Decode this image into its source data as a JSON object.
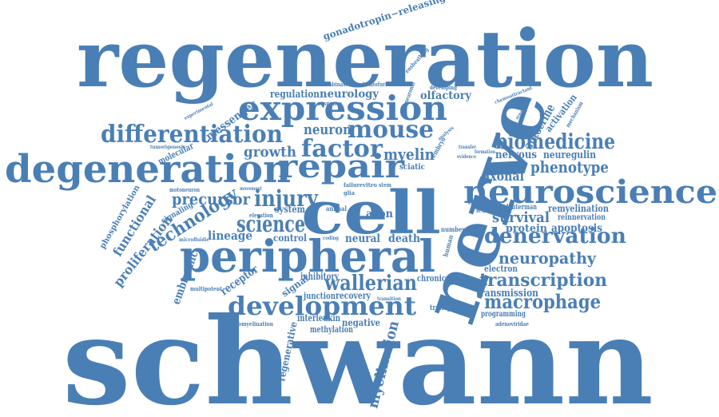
{
  "colors": {
    "word": "#4a7fb5",
    "background": "#ffffff"
  },
  "words": [
    {
      "id": "schwann",
      "text": "schwann"
    },
    {
      "id": "regeneration",
      "text": "regeneration"
    },
    {
      "id": "nerve",
      "text": "nerve"
    },
    {
      "id": "cell",
      "text": "cell"
    },
    {
      "id": "peripheral",
      "text": "peripheral"
    },
    {
      "id": "expression",
      "text": "expression"
    },
    {
      "id": "degeneration",
      "text": "degeneration"
    },
    {
      "id": "neuroscience",
      "text": "neuroscience"
    },
    {
      "id": "repair",
      "text": "repair"
    },
    {
      "id": "differentiation",
      "text": "differentiation"
    },
    {
      "id": "development",
      "text": "development"
    },
    {
      "id": "mouse",
      "text": "mouse"
    },
    {
      "id": "factor",
      "text": "factor"
    },
    {
      "id": "biomedicine",
      "text": "biomedicine"
    },
    {
      "id": "denervation",
      "text": "denervation"
    },
    {
      "id": "science",
      "text": "science"
    },
    {
      "id": "technology",
      "text": "technology"
    },
    {
      "id": "injury",
      "text": "injury"
    },
    {
      "id": "wallerian",
      "text": "wallerian"
    },
    {
      "id": "transcription",
      "text": "transcription"
    },
    {
      "id": "macrophage",
      "text": "macrophage"
    },
    {
      "id": "neuropathy",
      "text": "neuropathy"
    },
    {
      "id": "phenotype",
      "text": "phenotype"
    },
    {
      "id": "myelin",
      "text": "myelin"
    },
    {
      "id": "growth",
      "text": "growth"
    },
    {
      "id": "neuron",
      "text": "neuron"
    },
    {
      "id": "precursor",
      "text": "precursor"
    },
    {
      "id": "survival",
      "text": "survival"
    },
    {
      "id": "neurology",
      "text": "neurology"
    },
    {
      "id": "regulation",
      "text": "regulation"
    },
    {
      "id": "olfactory",
      "text": "olfactory"
    },
    {
      "id": "messenger",
      "text": "messenger"
    },
    {
      "id": "functional",
      "text": "functional"
    },
    {
      "id": "proliferation",
      "text": "proliferation"
    },
    {
      "id": "myelination",
      "text": "myelination"
    },
    {
      "id": "embryonic",
      "text": "embryonic"
    },
    {
      "id": "lineage",
      "text": "lineage"
    },
    {
      "id": "protein",
      "text": "protein"
    },
    {
      "id": "apoptosis",
      "text": "apoptosis"
    },
    {
      "id": "axonal",
      "text": "axonal"
    },
    {
      "id": "nervous",
      "text": "nervous"
    },
    {
      "id": "neuregulin",
      "text": "neuregulin"
    },
    {
      "id": "remyelination",
      "text": "remyelination"
    },
    {
      "id": "reinnervation",
      "text": "reinnervation"
    },
    {
      "id": "autocrine",
      "text": "autocrine"
    },
    {
      "id": "activation",
      "text": "activation"
    },
    {
      "id": "gonadotropin-releasing",
      "text": "gonadotropin−releasing"
    },
    {
      "id": "neural",
      "text": "neural"
    },
    {
      "id": "death",
      "text": "death"
    },
    {
      "id": "axon",
      "text": "axon"
    },
    {
      "id": "control",
      "text": "control"
    },
    {
      "id": "system",
      "text": "system"
    },
    {
      "id": "receptor",
      "text": "receptor"
    },
    {
      "id": "signal",
      "text": "signal"
    },
    {
      "id": "inhibitory",
      "text": "inhibitory"
    },
    {
      "id": "junction",
      "text": "junction"
    },
    {
      "id": "recovery",
      "text": "recovery"
    },
    {
      "id": "interleukin",
      "text": "interleukin"
    },
    {
      "id": "methylation",
      "text": "methylation"
    },
    {
      "id": "negative",
      "text": "negative"
    },
    {
      "id": "regenerative",
      "text": "regenerative"
    },
    {
      "id": "transmission",
      "text": "transmission"
    },
    {
      "id": "programming",
      "text": "programming"
    },
    {
      "id": "transgenic",
      "text": "transgenic"
    },
    {
      "id": "electron",
      "text": "electron"
    },
    {
      "id": "chronic",
      "text": "chronic"
    },
    {
      "id": "sciatic",
      "text": "sciatic"
    },
    {
      "id": "molecular",
      "text": "molecular"
    },
    {
      "id": "phosphorylation",
      "text": "phosphorylation"
    },
    {
      "id": "signaling",
      "text": "signaling"
    },
    {
      "id": "motoneuron",
      "text": "motoneuron"
    },
    {
      "id": "multipotent",
      "text": "multipotent"
    },
    {
      "id": "hypomyelination",
      "text": "hypomyelination"
    },
    {
      "id": "leukemia",
      "text": "leukemia"
    },
    {
      "id": "lanterman",
      "text": "lanterman"
    },
    {
      "id": "adenoviridae",
      "text": "adenoviridae"
    },
    {
      "id": "mechanism",
      "text": "mechanism"
    },
    {
      "id": "response",
      "text": "response"
    },
    {
      "id": "recombinase",
      "text": "recombinase"
    },
    {
      "id": "benzofuran",
      "text": "benzofuran"
    },
    {
      "id": "developing",
      "text": "developing"
    },
    {
      "id": "ensheathing",
      "text": "ensheathing"
    },
    {
      "id": "chemoattractant",
      "text": "chemoattractant"
    },
    {
      "id": "experimental",
      "text": "experimental"
    },
    {
      "id": "tumorigenesis",
      "text": "tumorigenesis"
    },
    {
      "id": "microfluidic",
      "text": "microfluidic"
    },
    {
      "id": "elevation",
      "text": "elevation"
    },
    {
      "id": "animal",
      "text": "animal"
    },
    {
      "id": "number",
      "text": "number"
    },
    {
      "id": "human",
      "text": "human"
    },
    {
      "id": "embryo",
      "text": "embryo"
    },
    {
      "id": "failure",
      "text": "failure"
    },
    {
      "id": "vitro",
      "text": "vitro"
    },
    {
      "id": "glia",
      "text": "glia"
    },
    {
      "id": "stem",
      "text": "stem"
    },
    {
      "id": "important",
      "text": "important"
    },
    {
      "id": "epithelial",
      "text": "epithelial"
    },
    {
      "id": "formation",
      "text": "formation"
    },
    {
      "id": "transition",
      "text": "transition"
    },
    {
      "id": "coding",
      "text": "coding"
    },
    {
      "id": "movement",
      "text": "movement"
    },
    {
      "id": "neuronal",
      "text": "neuronal"
    },
    {
      "id": "analysis",
      "text": "analysis"
    },
    {
      "id": "sympathetic",
      "text": "sympathetic"
    },
    {
      "id": "transfer",
      "text": "transfer"
    },
    {
      "id": "evidence",
      "text": "evidence"
    }
  ]
}
